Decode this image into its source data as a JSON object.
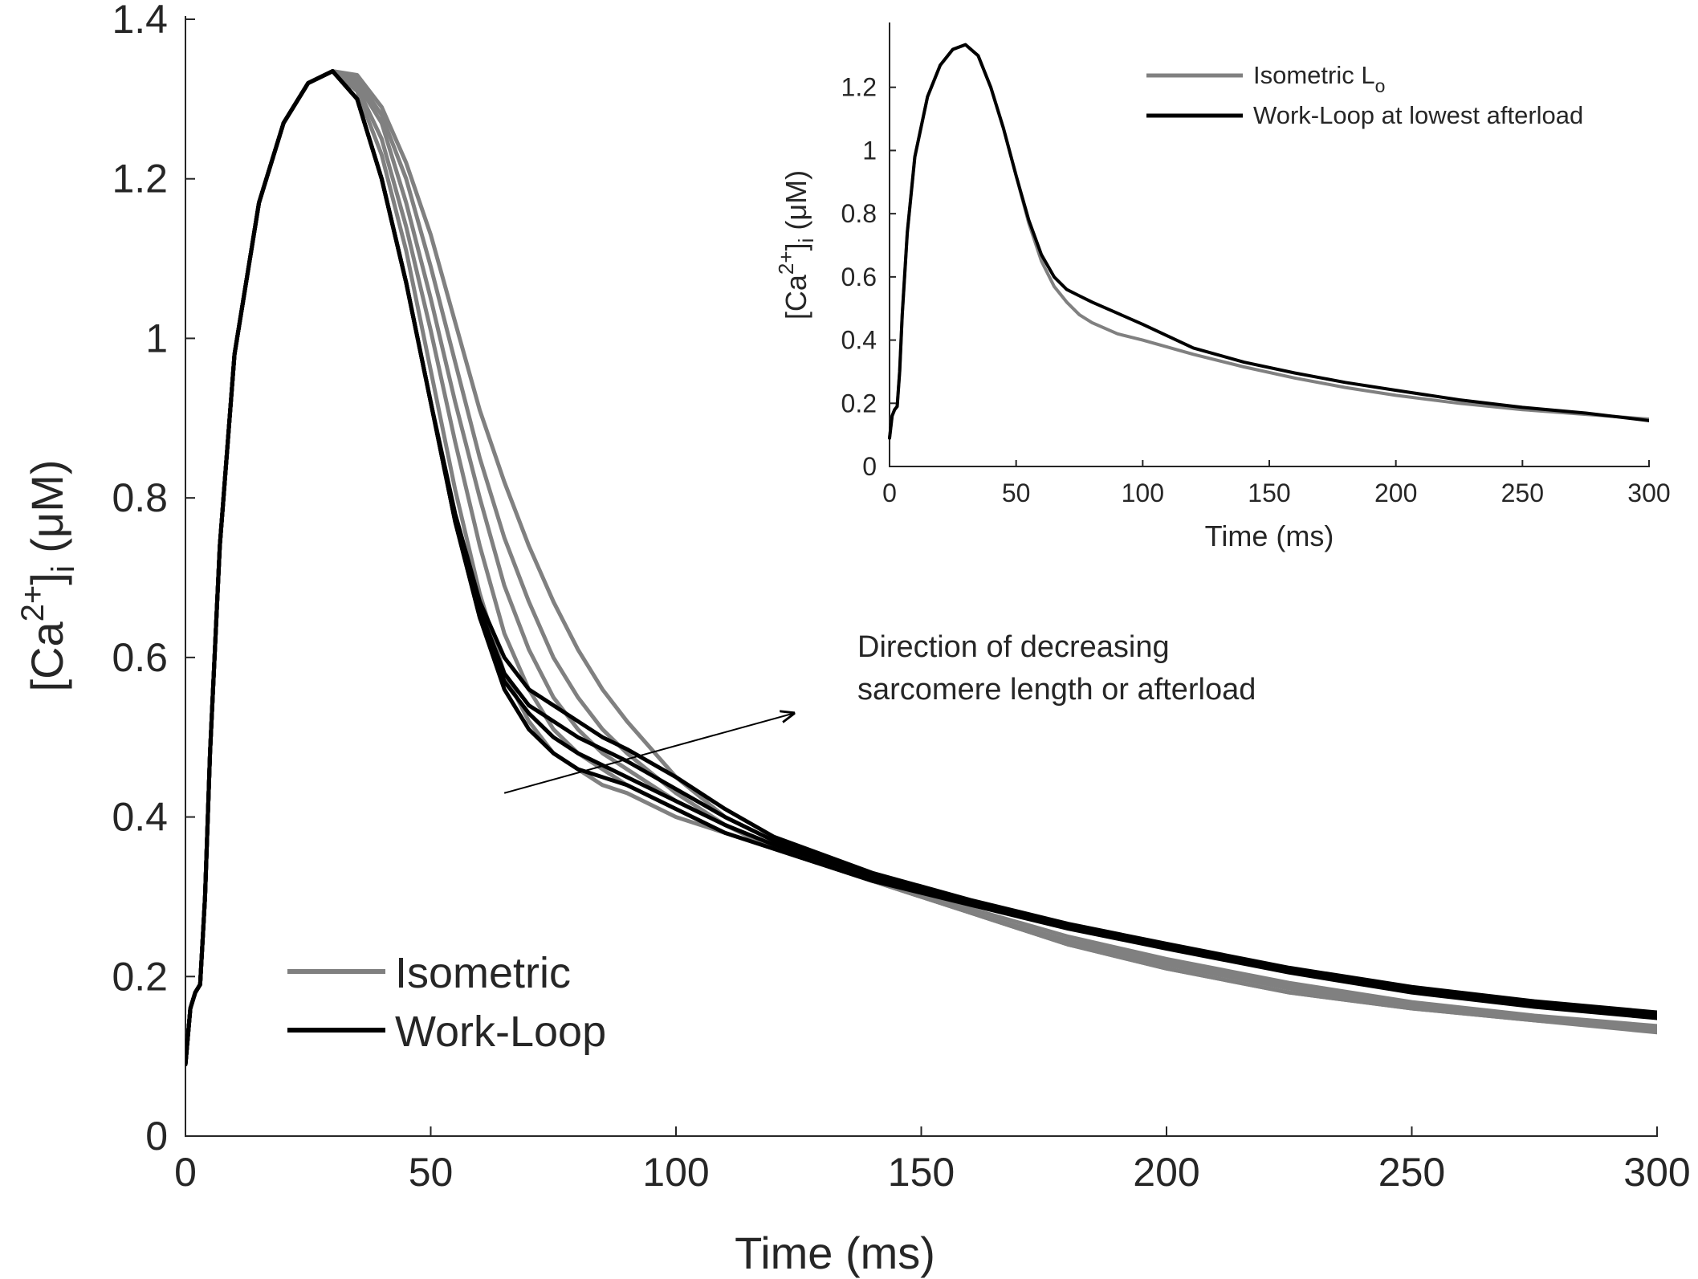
{
  "chart_data": [
    {
      "type": "line",
      "title": "",
      "xlabel": "Time (ms)",
      "ylabel": "[Ca2+]i (μM)",
      "ylabel_parts": {
        "open": "[Ca",
        "sup": "2+",
        "mid": "]",
        "sub": "i",
        "unit": " (μM)"
      },
      "xlim": [
        0,
        300
      ],
      "ylim": [
        0,
        1.4
      ],
      "xticks": [
        "0",
        "50",
        "100",
        "150",
        "200",
        "250",
        "300"
      ],
      "yticks": [
        "0",
        "0.2",
        "0.4",
        "0.6",
        "0.8",
        "1",
        "1.2",
        "1.4"
      ],
      "legend": [
        {
          "label": "Isometric",
          "color": "#808080"
        },
        {
          "label": "Work-Loop",
          "color": "#000000"
        }
      ],
      "annotation": {
        "lines": [
          "Direction of decreasing",
          "sarcomere length or afterload"
        ],
        "arrow_from": [
          65,
          0.43
        ],
        "arrow_to": [
          124,
          0.53
        ]
      },
      "series": [
        {
          "name": "Isometric",
          "color": "#808080",
          "x": [
            0,
            1,
            2,
            3,
            4,
            5,
            7,
            10,
            15,
            20,
            25,
            30,
            35,
            40,
            45,
            50,
            55,
            60,
            65,
            70,
            75,
            80,
            85,
            90,
            100,
            110,
            120,
            140,
            160,
            180,
            200,
            225,
            250,
            275,
            300
          ],
          "y": [
            0.09,
            0.16,
            0.18,
            0.19,
            0.3,
            0.48,
            0.74,
            0.98,
            1.17,
            1.27,
            1.32,
            1.335,
            1.33,
            1.29,
            1.22,
            1.13,
            1.02,
            0.91,
            0.82,
            0.74,
            0.67,
            0.61,
            0.56,
            0.52,
            0.45,
            0.4,
            0.37,
            0.32,
            0.28,
            0.24,
            0.21,
            0.18,
            0.16,
            0.145,
            0.13
          ]
        },
        {
          "name": "Isometric",
          "color": "#808080",
          "x": [
            0,
            1,
            2,
            3,
            4,
            5,
            7,
            10,
            15,
            20,
            25,
            30,
            35,
            40,
            45,
            50,
            55,
            60,
            65,
            70,
            75,
            80,
            85,
            90,
            100,
            110,
            120,
            140,
            160,
            180,
            200,
            225,
            250,
            275,
            300
          ],
          "y": [
            0.09,
            0.16,
            0.18,
            0.19,
            0.3,
            0.48,
            0.74,
            0.98,
            1.17,
            1.27,
            1.32,
            1.335,
            1.325,
            1.28,
            1.2,
            1.09,
            0.97,
            0.85,
            0.75,
            0.67,
            0.6,
            0.55,
            0.51,
            0.48,
            0.43,
            0.39,
            0.36,
            0.32,
            0.28,
            0.24,
            0.21,
            0.18,
            0.16,
            0.145,
            0.132
          ]
        },
        {
          "name": "Isometric",
          "color": "#808080",
          "x": [
            0,
            1,
            2,
            3,
            4,
            5,
            7,
            10,
            15,
            20,
            25,
            30,
            35,
            40,
            45,
            50,
            55,
            60,
            65,
            70,
            75,
            80,
            85,
            90,
            100,
            110,
            120,
            140,
            160,
            180,
            200,
            225,
            250,
            275,
            300
          ],
          "y": [
            0.09,
            0.16,
            0.18,
            0.19,
            0.3,
            0.48,
            0.74,
            0.98,
            1.17,
            1.27,
            1.32,
            1.335,
            1.32,
            1.27,
            1.17,
            1.05,
            0.92,
            0.8,
            0.69,
            0.61,
            0.55,
            0.51,
            0.48,
            0.46,
            0.42,
            0.39,
            0.36,
            0.32,
            0.28,
            0.24,
            0.215,
            0.185,
            0.163,
            0.147,
            0.134
          ]
        },
        {
          "name": "Isometric",
          "color": "#808080",
          "x": [
            0,
            1,
            2,
            3,
            4,
            5,
            7,
            10,
            15,
            20,
            25,
            30,
            35,
            40,
            45,
            50,
            55,
            60,
            65,
            70,
            75,
            80,
            85,
            90,
            100,
            110,
            120,
            140,
            160,
            180,
            200,
            225,
            250,
            275,
            300
          ],
          "y": [
            0.09,
            0.16,
            0.18,
            0.19,
            0.3,
            0.48,
            0.74,
            0.98,
            1.17,
            1.27,
            1.32,
            1.335,
            1.315,
            1.25,
            1.14,
            1.01,
            0.87,
            0.74,
            0.63,
            0.56,
            0.51,
            0.48,
            0.46,
            0.44,
            0.41,
            0.38,
            0.36,
            0.32,
            0.28,
            0.245,
            0.218,
            0.188,
            0.165,
            0.149,
            0.136
          ]
        },
        {
          "name": "Isometric",
          "color": "#808080",
          "x": [
            0,
            1,
            2,
            3,
            4,
            5,
            7,
            10,
            15,
            20,
            25,
            30,
            35,
            40,
            45,
            50,
            55,
            60,
            65,
            70,
            75,
            80,
            85,
            90,
            100,
            110,
            120,
            140,
            160,
            180,
            200,
            225,
            250,
            275,
            300
          ],
          "y": [
            0.09,
            0.16,
            0.18,
            0.19,
            0.3,
            0.48,
            0.74,
            0.98,
            1.17,
            1.27,
            1.32,
            1.335,
            1.31,
            1.23,
            1.11,
            0.96,
            0.81,
            0.68,
            0.58,
            0.52,
            0.48,
            0.46,
            0.44,
            0.43,
            0.4,
            0.38,
            0.36,
            0.32,
            0.285,
            0.25,
            0.222,
            0.192,
            0.168,
            0.151,
            0.138
          ]
        },
        {
          "name": "Work-Loop",
          "color": "#000000",
          "x": [
            0,
            1,
            2,
            3,
            4,
            5,
            7,
            10,
            15,
            20,
            25,
            30,
            35,
            40,
            45,
            50,
            55,
            60,
            65,
            70,
            75,
            80,
            85,
            90,
            100,
            110,
            120,
            140,
            160,
            180,
            200,
            225,
            250,
            275,
            300
          ],
          "y": [
            0.09,
            0.16,
            0.18,
            0.19,
            0.3,
            0.48,
            0.74,
            0.98,
            1.17,
            1.27,
            1.32,
            1.335,
            1.3,
            1.2,
            1.07,
            0.92,
            0.77,
            0.65,
            0.56,
            0.51,
            0.48,
            0.46,
            0.45,
            0.44,
            0.41,
            0.38,
            0.36,
            0.32,
            0.29,
            0.26,
            0.235,
            0.205,
            0.18,
            0.162,
            0.148
          ]
        },
        {
          "name": "Work-Loop",
          "color": "#000000",
          "x": [
            0,
            1,
            2,
            3,
            4,
            5,
            7,
            10,
            15,
            20,
            25,
            30,
            35,
            40,
            45,
            50,
            55,
            60,
            65,
            70,
            75,
            80,
            85,
            90,
            100,
            110,
            120,
            140,
            160,
            180,
            200,
            225,
            250,
            275,
            300
          ],
          "y": [
            0.09,
            0.16,
            0.18,
            0.19,
            0.3,
            0.48,
            0.74,
            0.98,
            1.17,
            1.27,
            1.32,
            1.335,
            1.3,
            1.2,
            1.07,
            0.92,
            0.77,
            0.65,
            0.57,
            0.53,
            0.5,
            0.48,
            0.465,
            0.45,
            0.42,
            0.39,
            0.365,
            0.325,
            0.292,
            0.262,
            0.238,
            0.208,
            0.184,
            0.166,
            0.152
          ]
        },
        {
          "name": "Work-Loop",
          "color": "#000000",
          "x": [
            0,
            1,
            2,
            3,
            4,
            5,
            7,
            10,
            15,
            20,
            25,
            30,
            35,
            40,
            45,
            50,
            55,
            60,
            65,
            70,
            75,
            80,
            85,
            90,
            100,
            110,
            120,
            140,
            160,
            180,
            200,
            225,
            250,
            275,
            300
          ],
          "y": [
            0.09,
            0.16,
            0.18,
            0.19,
            0.3,
            0.48,
            0.74,
            0.98,
            1.17,
            1.27,
            1.32,
            1.335,
            1.3,
            1.2,
            1.07,
            0.92,
            0.77,
            0.66,
            0.58,
            0.54,
            0.52,
            0.5,
            0.485,
            0.47,
            0.435,
            0.4,
            0.37,
            0.328,
            0.295,
            0.265,
            0.24,
            0.21,
            0.186,
            0.168,
            0.154
          ]
        },
        {
          "name": "Work-Loop",
          "color": "#000000",
          "x": [
            0,
            1,
            2,
            3,
            4,
            5,
            7,
            10,
            15,
            20,
            25,
            30,
            35,
            40,
            45,
            50,
            55,
            60,
            65,
            70,
            75,
            80,
            85,
            90,
            100,
            110,
            120,
            140,
            160,
            180,
            200,
            225,
            250,
            275,
            300
          ],
          "y": [
            0.09,
            0.16,
            0.18,
            0.19,
            0.3,
            0.48,
            0.74,
            0.98,
            1.17,
            1.27,
            1.32,
            1.335,
            1.3,
            1.2,
            1.07,
            0.92,
            0.78,
            0.67,
            0.6,
            0.56,
            0.54,
            0.52,
            0.5,
            0.485,
            0.45,
            0.41,
            0.375,
            0.33,
            0.296,
            0.266,
            0.241,
            0.211,
            0.187,
            0.169,
            0.155
          ]
        }
      ]
    },
    {
      "type": "line",
      "title": "",
      "xlabel": "Time (ms)",
      "ylabel": "[Ca2+]i (μM)",
      "ylabel_parts": {
        "open": "[Ca",
        "sup": "2+",
        "mid": "]",
        "sub": "i",
        "unit": " (μM)"
      },
      "xlim": [
        0,
        300
      ],
      "ylim": [
        0,
        1.4
      ],
      "xticks": [
        "0",
        "50",
        "100",
        "150",
        "200",
        "250",
        "300"
      ],
      "yticks": [
        "0",
        "0.2",
        "0.4",
        "0.6",
        "0.8",
        "1",
        "1.2"
      ],
      "legend": [
        {
          "label": "Isometric L",
          "sub": "o",
          "color": "#808080"
        },
        {
          "label": "Work-Loop at lowest afterload",
          "color": "#000000"
        }
      ],
      "series": [
        {
          "name": "Isometric Lo",
          "color": "#808080",
          "x": [
            0,
            1,
            2,
            3,
            4,
            5,
            7,
            10,
            15,
            20,
            25,
            30,
            35,
            40,
            45,
            50,
            55,
            60,
            65,
            70,
            75,
            80,
            90,
            100,
            120,
            140,
            160,
            180,
            200,
            225,
            250,
            275,
            300
          ],
          "y": [
            0.09,
            0.16,
            0.18,
            0.19,
            0.3,
            0.48,
            0.74,
            0.98,
            1.17,
            1.27,
            1.32,
            1.335,
            1.3,
            1.2,
            1.07,
            0.92,
            0.77,
            0.65,
            0.57,
            0.52,
            0.48,
            0.455,
            0.42,
            0.4,
            0.355,
            0.315,
            0.28,
            0.25,
            0.225,
            0.2,
            0.18,
            0.165,
            0.15
          ]
        },
        {
          "name": "Work-Loop at lowest afterload",
          "color": "#000000",
          "x": [
            0,
            1,
            2,
            3,
            4,
            5,
            7,
            10,
            15,
            20,
            25,
            30,
            35,
            40,
            45,
            50,
            55,
            60,
            65,
            70,
            75,
            80,
            90,
            100,
            120,
            140,
            160,
            180,
            200,
            225,
            250,
            275,
            300
          ],
          "y": [
            0.09,
            0.16,
            0.18,
            0.19,
            0.3,
            0.48,
            0.74,
            0.98,
            1.17,
            1.27,
            1.32,
            1.335,
            1.3,
            1.2,
            1.07,
            0.92,
            0.78,
            0.67,
            0.6,
            0.56,
            0.54,
            0.52,
            0.485,
            0.45,
            0.375,
            0.33,
            0.296,
            0.266,
            0.241,
            0.211,
            0.187,
            0.169,
            0.145
          ]
        }
      ]
    }
  ]
}
